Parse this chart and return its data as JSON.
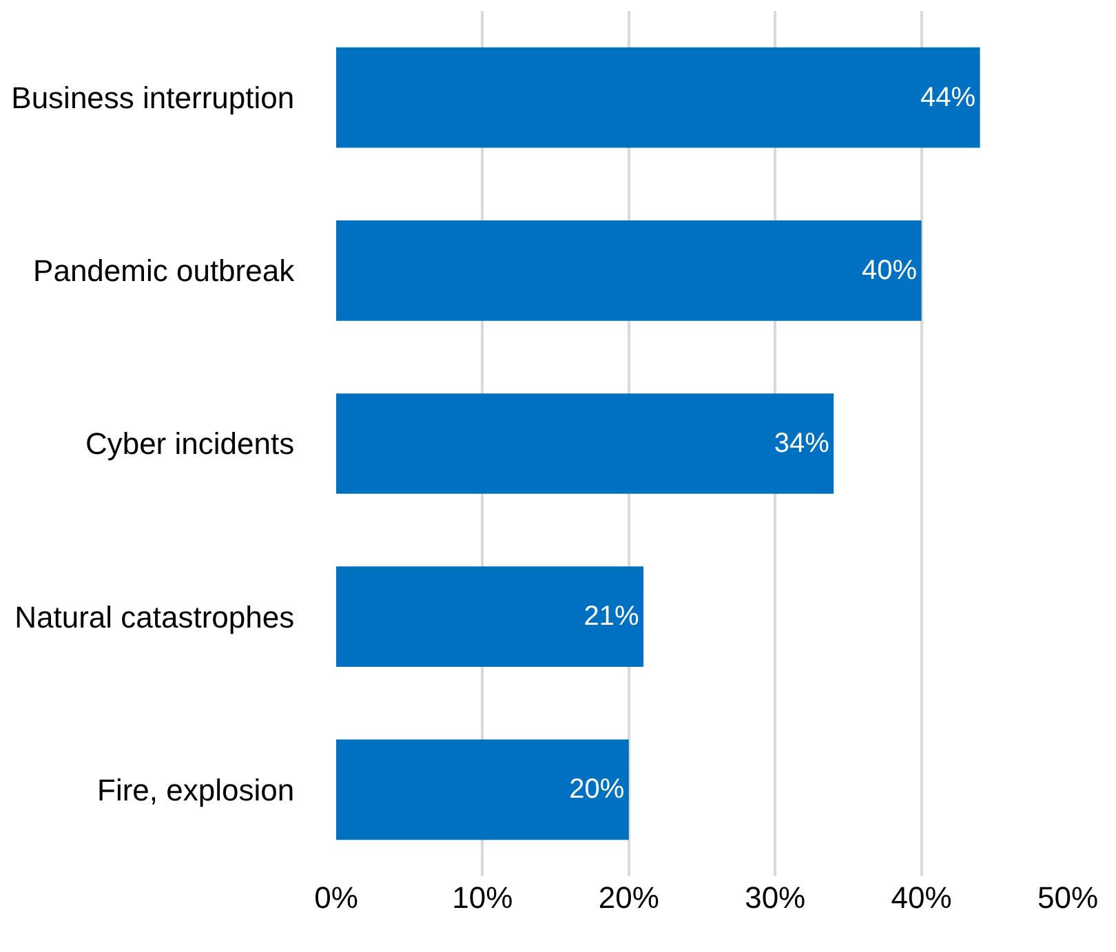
{
  "chart_data": {
    "type": "bar",
    "orientation": "horizontal",
    "categories": [
      "Business interruption",
      "Pandemic outbreak",
      "Cyber incidents",
      "Natural catastrophes",
      "Fire, explosion"
    ],
    "values": [
      44,
      40,
      34,
      21,
      20
    ],
    "value_labels": [
      "44%",
      "40%",
      "34%",
      "21%",
      "20%"
    ],
    "color": "#0070c0",
    "xlim": [
      0,
      50
    ],
    "xticks": [
      {
        "value": 0,
        "label": "0%"
      },
      {
        "value": 10,
        "label": "10%"
      },
      {
        "value": 20,
        "label": "20%"
      },
      {
        "value": 30,
        "label": "30%"
      },
      {
        "value": 40,
        "label": "40%"
      },
      {
        "value": 50,
        "label": "50%"
      }
    ],
    "grid": "x",
    "legend": false
  }
}
